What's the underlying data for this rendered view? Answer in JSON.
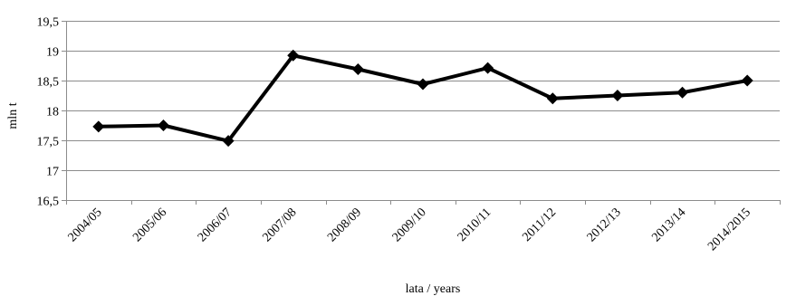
{
  "chart_data": {
    "type": "line",
    "title": "",
    "xlabel": "lata / years",
    "ylabel": "mln t",
    "categories": [
      "2004/05",
      "2005/06",
      "2006/07",
      "2007/08",
      "2008/09",
      "2009/10",
      "2010/11",
      "2011/12",
      "2012/13",
      "2013/14",
      "2014/2015"
    ],
    "series": [
      {
        "values": [
          17.73,
          17.75,
          17.49,
          18.92,
          18.69,
          18.44,
          18.71,
          18.2,
          18.25,
          18.3,
          18.5
        ]
      }
    ],
    "ylim": [
      16.5,
      19.5
    ],
    "yticks": [
      16.5,
      17,
      17.5,
      18,
      18.5,
      19,
      19.5
    ],
    "ytick_labels": [
      "16,5",
      "17",
      "17,5",
      "18",
      "18,5",
      "19",
      "19,5"
    ],
    "grid": true,
    "legend": "none",
    "marker": "diamond",
    "series_color": "#000000"
  }
}
